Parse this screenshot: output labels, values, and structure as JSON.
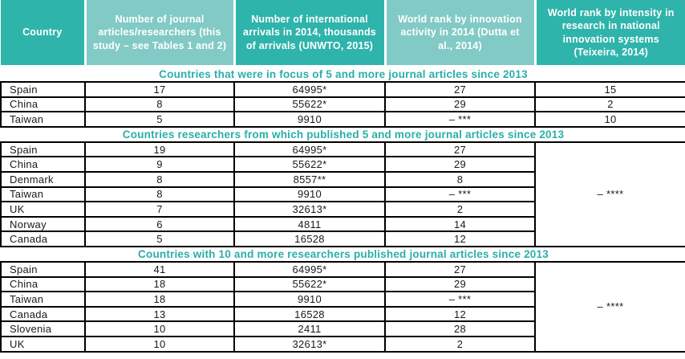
{
  "chart_data": {
    "type": "table",
    "columns": [
      "Country",
      "Number of journal articles/researchers (this study – see Tables 1 and 2)",
      "Number of international arrivals in 2014, thousands of arrivals (UNWTO, 2015)",
      "World rank by innovation activity in 2014 (Dutta et al., 2014)",
      "World rank by intensity in research in national innovation systems (Teixeira, 2014)"
    ],
    "sections": [
      {
        "title": "Countries that were in focus of 5 and more journal articles since 2013",
        "merged_last_col": false,
        "rows": [
          [
            "Spain",
            "17",
            "64995*",
            "27",
            "15"
          ],
          [
            "China",
            "8",
            "55622*",
            "29",
            "2"
          ],
          [
            "Taiwan",
            "5",
            "9910",
            "– ***",
            "10"
          ]
        ]
      },
      {
        "title": "Countries researchers from which published 5 and more journal articles since 2013",
        "merged_last_col": true,
        "merged_value": "– ****",
        "rows": [
          [
            "Spain",
            "19",
            "64995*",
            "27"
          ],
          [
            "China",
            "9",
            "55622*",
            "29"
          ],
          [
            "Denmark",
            "8",
            "8557**",
            "8"
          ],
          [
            "Taiwan",
            "8",
            "9910",
            "– ***"
          ],
          [
            "UK",
            "7",
            "32613*",
            "2"
          ],
          [
            "Norway",
            "6",
            "4811",
            "14"
          ],
          [
            "Canada",
            "5",
            "16528",
            "12"
          ]
        ]
      },
      {
        "title": "Countries with 10 and more researchers published journal articles since 2013",
        "merged_last_col": true,
        "merged_value": "– ****",
        "rows": [
          [
            "Spain",
            "41",
            "64995*",
            "27"
          ],
          [
            "China",
            "18",
            "55622*",
            "29"
          ],
          [
            "Taiwan",
            "18",
            "9910",
            "– ***"
          ],
          [
            "Canada",
            "13",
            "16528",
            "12"
          ],
          [
            "Slovenia",
            "10",
            "2411",
            "28"
          ],
          [
            "UK",
            "10",
            "32613*",
            "2"
          ]
        ]
      }
    ],
    "colors": {
      "header_dark": "#2fb4ab",
      "header_light": "#82cac5",
      "section_title_text": "#29afa8",
      "border": "#000000",
      "body_text": "#1a1a1a"
    }
  }
}
